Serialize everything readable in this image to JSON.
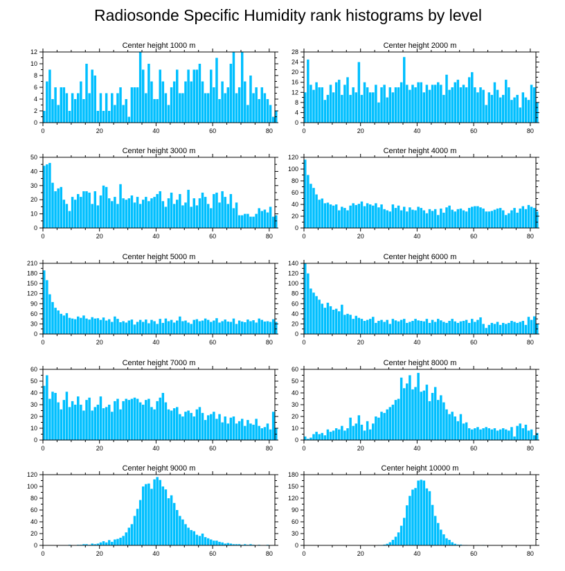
{
  "title": "Radiosonde Specific Humidity rank histograms by level",
  "colors": {
    "bar": "#00bfff",
    "axis": "#000000",
    "background": "#ffffff"
  },
  "chart_data": [
    {
      "type": "bar",
      "title": "Center height 1000 m",
      "xlim": [
        0,
        82
      ],
      "ylim": [
        0,
        12
      ],
      "xticks": [
        0,
        20,
        40,
        60,
        80
      ],
      "yticks": [
        0,
        2,
        4,
        6,
        8,
        10,
        12
      ],
      "values": [
        2,
        7,
        9,
        4,
        6,
        3,
        6,
        6,
        5,
        2,
        5,
        4,
        5,
        7,
        4,
        10,
        5,
        9,
        8,
        2,
        5,
        2,
        5,
        2,
        5,
        3,
        5,
        6,
        3,
        4,
        1,
        6,
        6,
        6,
        12,
        9,
        5,
        10,
        7,
        4,
        4,
        9,
        7,
        5,
        3,
        6,
        7,
        9,
        5,
        5,
        7,
        9,
        7,
        9,
        9,
        10,
        7,
        5,
        5,
        9,
        6,
        11,
        4,
        7,
        5,
        6,
        10,
        12,
        5,
        6,
        12,
        7,
        3,
        8,
        5,
        6,
        4,
        6,
        5,
        4,
        3,
        1,
        2
      ]
    },
    {
      "type": "bar",
      "title": "Center height 2000 m",
      "xlim": [
        0,
        82
      ],
      "ylim": [
        0,
        28
      ],
      "xticks": [
        0,
        20,
        40,
        60,
        80
      ],
      "yticks": [
        0,
        4,
        8,
        12,
        16,
        20,
        24,
        28
      ],
      "values": [
        12,
        25,
        15,
        13,
        16,
        14,
        14,
        9,
        11,
        15,
        12,
        16,
        17,
        11,
        15,
        18,
        11,
        14,
        12,
        24,
        11,
        16,
        14,
        12,
        12,
        15,
        8,
        14,
        15,
        10,
        14,
        12,
        14,
        14,
        16,
        26,
        15,
        13,
        15,
        14,
        16,
        16,
        12,
        15,
        13,
        15,
        15,
        16,
        15,
        11,
        19,
        13,
        14,
        16,
        17,
        14,
        15,
        14,
        18,
        20,
        14,
        12,
        14,
        13,
        7,
        12,
        11,
        16,
        13,
        10,
        11,
        17,
        14,
        9,
        10,
        11,
        6,
        12,
        10,
        9,
        15,
        14,
        8
      ]
    },
    {
      "type": "bar",
      "title": "Center height 3000 m",
      "xlim": [
        0,
        82
      ],
      "ylim": [
        0,
        50
      ],
      "xticks": [
        0,
        20,
        40,
        60,
        80
      ],
      "yticks": [
        0,
        10,
        20,
        30,
        40,
        50
      ],
      "values": [
        44,
        45,
        46,
        32,
        26,
        28,
        29,
        20,
        17,
        12,
        22,
        20,
        24,
        22,
        26,
        26,
        25,
        17,
        26,
        16,
        23,
        30,
        29,
        21,
        19,
        22,
        17,
        31,
        21,
        20,
        21,
        23,
        18,
        22,
        17,
        20,
        22,
        19,
        21,
        22,
        24,
        26,
        19,
        15,
        21,
        25,
        17,
        20,
        24,
        16,
        18,
        27,
        15,
        21,
        16,
        21,
        25,
        22,
        17,
        14,
        24,
        25,
        18,
        26,
        22,
        17,
        24,
        14,
        18,
        9,
        9,
        10,
        10,
        8,
        8,
        10,
        14,
        12,
        13,
        11,
        15,
        8,
        9
      ]
    },
    {
      "type": "bar",
      "title": "Center height 4000 m",
      "xlim": [
        0,
        82
      ],
      "ylim": [
        0,
        120
      ],
      "xticks": [
        0,
        20,
        40,
        60,
        80
      ],
      "yticks": [
        0,
        20,
        40,
        60,
        80,
        100,
        120
      ],
      "values": [
        116,
        90,
        75,
        68,
        57,
        48,
        50,
        42,
        43,
        40,
        38,
        40,
        30,
        36,
        34,
        30,
        38,
        42,
        39,
        41,
        45,
        37,
        42,
        40,
        38,
        42,
        35,
        40,
        32,
        30,
        28,
        40,
        34,
        38,
        30,
        36,
        28,
        35,
        31,
        30,
        36,
        34,
        30,
        25,
        32,
        29,
        32,
        22,
        33,
        26,
        35,
        38,
        31,
        28,
        32,
        33,
        30,
        28,
        34,
        36,
        37,
        37,
        35,
        33,
        28,
        28,
        29,
        31,
        33,
        34,
        30,
        22,
        25,
        30,
        34,
        26,
        33,
        37,
        32,
        39,
        36,
        34,
        28
      ]
    },
    {
      "type": "bar",
      "title": "Center height 5000 m",
      "xlim": [
        0,
        82
      ],
      "ylim": [
        0,
        210
      ],
      "xticks": [
        0,
        20,
        40,
        60,
        80
      ],
      "yticks": [
        0,
        30,
        60,
        90,
        120,
        150,
        180,
        210
      ],
      "values": [
        189,
        160,
        118,
        95,
        78,
        70,
        60,
        55,
        62,
        48,
        46,
        44,
        52,
        48,
        55,
        46,
        43,
        50,
        46,
        47,
        42,
        49,
        40,
        44,
        36,
        52,
        45,
        35,
        38,
        34,
        40,
        43,
        28,
        36,
        42,
        36,
        43,
        32,
        42,
        38,
        30,
        45,
        33,
        46,
        38,
        42,
        34,
        40,
        52,
        38,
        40,
        34,
        30,
        42,
        44,
        38,
        40,
        46,
        42,
        36,
        40,
        47,
        34,
        38,
        43,
        37,
        36,
        46,
        30,
        40,
        37,
        35,
        43,
        38,
        41,
        34,
        46,
        42,
        37,
        38,
        36,
        44,
        36
      ]
    },
    {
      "type": "bar",
      "title": "Center height 6000 m",
      "xlim": [
        0,
        82
      ],
      "ylim": [
        0,
        140
      ],
      "xticks": [
        0,
        20,
        40,
        60,
        80
      ],
      "yticks": [
        0,
        20,
        40,
        60,
        80,
        100,
        120,
        140
      ],
      "values": [
        140,
        120,
        90,
        82,
        75,
        68,
        60,
        52,
        62,
        55,
        48,
        50,
        45,
        58,
        38,
        40,
        38,
        30,
        36,
        32,
        30,
        26,
        28,
        30,
        34,
        22,
        26,
        28,
        24,
        28,
        20,
        30,
        27,
        25,
        28,
        30,
        22,
        24,
        26,
        30,
        27,
        26,
        25,
        30,
        22,
        28,
        24,
        30,
        27,
        24,
        22,
        26,
        30,
        25,
        22,
        25,
        26,
        28,
        22,
        30,
        24,
        28,
        33,
        20,
        12,
        18,
        22,
        20,
        24,
        18,
        22,
        20,
        22,
        26,
        24,
        22,
        24,
        26,
        18,
        34,
        28,
        35,
        20
      ]
    },
    {
      "type": "bar",
      "title": "Center height 7000 m",
      "xlim": [
        0,
        82
      ],
      "ylim": [
        0,
        60
      ],
      "xticks": [
        0,
        20,
        40,
        60,
        80
      ],
      "yticks": [
        0,
        10,
        20,
        30,
        40,
        50,
        60
      ],
      "values": [
        46,
        55,
        35,
        41,
        40,
        32,
        26,
        34,
        41,
        28,
        33,
        30,
        37,
        30,
        25,
        34,
        36,
        25,
        28,
        30,
        37,
        27,
        28,
        30,
        24,
        33,
        35,
        26,
        33,
        35,
        34,
        35,
        36,
        35,
        32,
        30,
        34,
        35,
        28,
        26,
        33,
        36,
        40,
        32,
        26,
        25,
        27,
        28,
        22,
        20,
        24,
        25,
        23,
        20,
        26,
        28,
        23,
        17,
        21,
        22,
        24,
        18,
        22,
        15,
        20,
        14,
        19,
        20,
        14,
        16,
        18,
        12,
        17,
        14,
        13,
        18,
        12,
        10,
        11,
        14,
        9,
        24,
        10
      ]
    },
    {
      "type": "bar",
      "title": "Center height 8000 m",
      "xlim": [
        0,
        82
      ],
      "ylim": [
        0,
        60
      ],
      "xticks": [
        0,
        20,
        40,
        60,
        80
      ],
      "yticks": [
        0,
        10,
        20,
        30,
        40,
        50,
        60
      ],
      "values": [
        3,
        1,
        2,
        5,
        7,
        5,
        6,
        4,
        9,
        7,
        8,
        10,
        9,
        12,
        8,
        10,
        19,
        12,
        14,
        21,
        13,
        8,
        16,
        9,
        14,
        20,
        19,
        24,
        23,
        26,
        28,
        30,
        34,
        35,
        53,
        44,
        48,
        55,
        43,
        45,
        57,
        41,
        42,
        47,
        33,
        40,
        45,
        34,
        38,
        32,
        26,
        22,
        24,
        20,
        16,
        22,
        14,
        15,
        10,
        9,
        10,
        11,
        9,
        10,
        11,
        10,
        9,
        10,
        8,
        9,
        10,
        9,
        8,
        11,
        3,
        12,
        14,
        10,
        13,
        8,
        9,
        4,
        6
      ]
    },
    {
      "type": "bar",
      "title": "Center height 9000 m",
      "xlim": [
        0,
        82
      ],
      "ylim": [
        0,
        120
      ],
      "xticks": [
        0,
        20,
        40,
        60,
        80
      ],
      "yticks": [
        0,
        20,
        40,
        60,
        80,
        100,
        120
      ],
      "values": [
        0,
        0,
        0,
        0,
        0,
        0,
        0,
        0,
        0,
        1,
        0,
        0,
        1,
        1,
        2,
        2,
        1,
        3,
        2,
        3,
        5,
        7,
        5,
        9,
        6,
        10,
        11,
        13,
        16,
        22,
        30,
        36,
        50,
        62,
        77,
        100,
        104,
        105,
        96,
        112,
        116,
        111,
        100,
        95,
        80,
        85,
        72,
        60,
        50,
        44,
        36,
        30,
        26,
        24,
        18,
        16,
        20,
        14,
        12,
        10,
        8,
        8,
        6,
        5,
        3,
        4,
        3,
        2,
        2,
        2,
        1,
        2,
        1,
        2,
        1,
        0,
        1,
        0,
        0,
        1,
        0,
        0,
        0
      ]
    },
    {
      "type": "bar",
      "title": "Center height 10000 m",
      "xlim": [
        0,
        82
      ],
      "ylim": [
        0,
        180
      ],
      "xticks": [
        0,
        20,
        40,
        60,
        80
      ],
      "yticks": [
        0,
        30,
        60,
        90,
        120,
        150,
        180
      ],
      "values": [
        0,
        0,
        0,
        0,
        0,
        0,
        0,
        0,
        0,
        0,
        0,
        0,
        0,
        0,
        0,
        0,
        0,
        0,
        0,
        0,
        0,
        0,
        0,
        0,
        0,
        0,
        1,
        1,
        2,
        4,
        8,
        14,
        22,
        33,
        50,
        70,
        102,
        126,
        142,
        146,
        165,
        167,
        165,
        145,
        138,
        103,
        75,
        57,
        40,
        28,
        18,
        14,
        8,
        4,
        2,
        2,
        1,
        1,
        0,
        0,
        0,
        1,
        0,
        1,
        0,
        0,
        0,
        0,
        0,
        0,
        0,
        0,
        0,
        0,
        0,
        0,
        0,
        0,
        0,
        0,
        0,
        0,
        0
      ]
    }
  ]
}
